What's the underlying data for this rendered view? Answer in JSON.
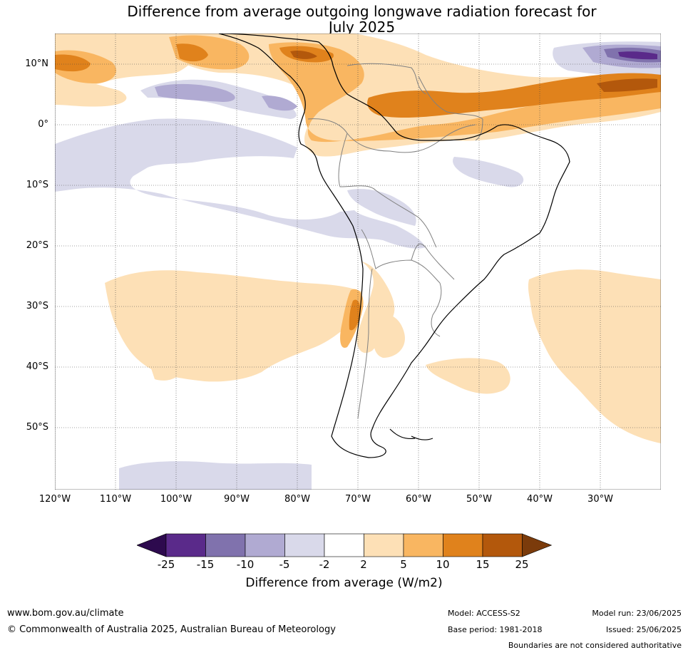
{
  "header": {
    "title_line1": "Difference from average outgoing longwave radiation forecast for",
    "title_line2": "July 2025"
  },
  "map": {
    "lat_labels": [
      "10°N",
      "0°",
      "10°S",
      "20°S",
      "30°S",
      "40°S",
      "50°S"
    ],
    "lon_labels": [
      "120°W",
      "110°W",
      "100°W",
      "90°W",
      "80°W",
      "70°W",
      "60°W",
      "50°W",
      "40°W",
      "30°W"
    ]
  },
  "colorbar": {
    "ticks": [
      "-25",
      "-15",
      "-10",
      "-5",
      "-2",
      "2",
      "5",
      "10",
      "15",
      "25"
    ],
    "colors": [
      "#2d0a4e",
      "#5a2a8a",
      "#8072ad",
      "#b0aad2",
      "#d9d9ea",
      "#ffffff",
      "#fde0b6",
      "#f9b661",
      "#e0821c",
      "#b3580c",
      "#7b3b0b"
    ],
    "label": "Difference from average (W/m2)"
  },
  "footer": {
    "url": "www.bom.gov.au/climate",
    "copyright": "© Commonwealth of Australia 2025, Australian Bureau of Meteorology",
    "model": "Model: ACCESS-S2",
    "base_period": "Base period: 1981-2018",
    "model_run": "Model run: 23/06/2025",
    "issued": "Issued: 25/06/2025",
    "disclaimer": "Boundaries are not considered authoritative"
  }
}
